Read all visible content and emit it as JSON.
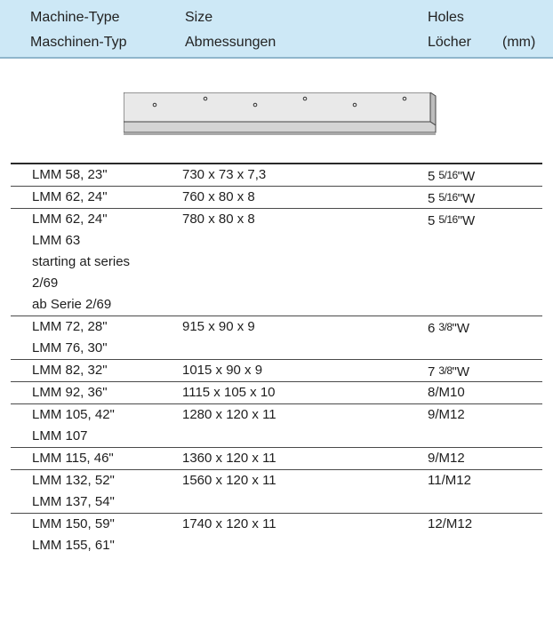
{
  "header": {
    "machine_en": "Machine-Type",
    "machine_de": "Maschinen-Typ",
    "size_en": "Size",
    "size_de": "Abmessungen",
    "holes_en": "Holes",
    "holes_de": "Löcher",
    "unit": "(mm)"
  },
  "rows": [
    {
      "models": [
        "LMM 58, 23\""
      ],
      "size": "730 x 73 x 7,3",
      "holes_count": "5",
      "holes_spec": "5/16\"W"
    },
    {
      "models": [
        "LMM 62, 24\""
      ],
      "size": "760 x 80 x 8",
      "holes_count": "5",
      "holes_spec": "5/16\"W"
    },
    {
      "models": [
        "LMM 62, 24\"",
        "LMM 63",
        "starting at series",
        "2/69",
        "ab Serie 2/69"
      ],
      "size": "780 x 80 x 8",
      "holes_count": "5",
      "holes_spec": "5/16\"W"
    },
    {
      "models": [
        "LMM 72, 28\"",
        "LMM 76, 30\""
      ],
      "size": "915 x 90 x 9",
      "holes_count": "6",
      "holes_spec": "3/8\"W"
    },
    {
      "models": [
        "LMM 82, 32\""
      ],
      "size": "1015 x 90 x 9",
      "holes_count": "7",
      "holes_spec": "3/8\"W"
    },
    {
      "models": [
        "LMM 92, 36\""
      ],
      "size": "1115 x 105 x 10",
      "holes_count": "",
      "holes_spec": "8/M10"
    },
    {
      "models": [
        "LMM 105, 42\"",
        "LMM 107"
      ],
      "size": "1280 x 120 x 11",
      "holes_count": "",
      "holes_spec": "9/M12"
    },
    {
      "models": [
        "LMM 115, 46\""
      ],
      "size": "1360 x 120 x 11",
      "holes_count": "",
      "holes_spec": "9/M12"
    },
    {
      "models": [
        "LMM 132, 52\"",
        "LMM 137, 54\""
      ],
      "size": "1560 x 120 x 11",
      "holes_count": "",
      "holes_spec": "11/M12"
    },
    {
      "models": [
        "LMM 150, 59\"",
        "LMM 155, 61\""
      ],
      "size": "1740 x 120 x 11",
      "holes_count": "",
      "holes_spec": "12/M12"
    }
  ],
  "colors": {
    "header_bg": "#cde8f6",
    "header_rule": "#8fb6cc",
    "blade_face": "#e9e9e9",
    "text": "#1e1e1e"
  },
  "illustration": "knife-blade-with-holes"
}
